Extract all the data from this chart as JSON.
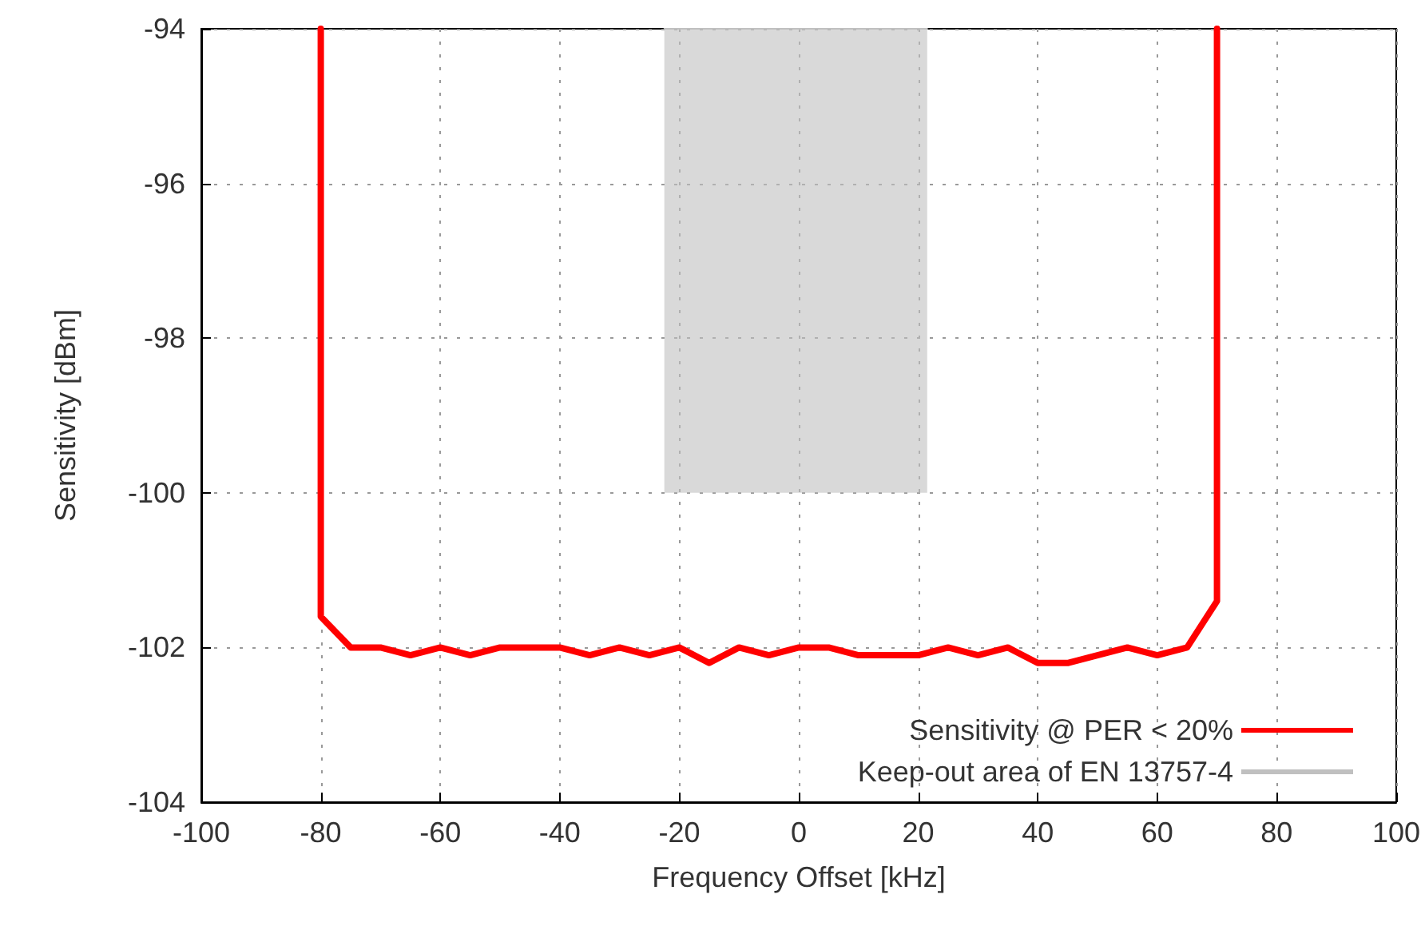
{
  "chart_data": {
    "type": "line",
    "xlabel": "Frequency Offset [kHz]",
    "ylabel": "Sensitivity [dBm]",
    "series": [
      {
        "name": "Sensitivity @ PER < 20%",
        "type": "line",
        "color": "#ff0000",
        "x": [
          -80,
          -80,
          -80,
          -75,
          -70,
          -65,
          -60,
          -55,
          -50,
          -40,
          -35,
          -30,
          -25,
          -20,
          -15,
          -10,
          -5,
          0,
          5,
          10,
          20,
          25,
          30,
          35,
          40,
          45,
          50,
          55,
          60,
          65,
          70,
          70,
          70
        ],
        "values": [
          -94,
          -97.8,
          -101.6,
          -102,
          -102,
          -102.1,
          -102,
          -102.1,
          -102,
          -102,
          -102.1,
          -102,
          -102.1,
          -102,
          -102.2,
          -102,
          -102.1,
          -102,
          -102,
          -102.1,
          -102.1,
          -102,
          -102.1,
          -102,
          -102.2,
          -102.2,
          -102.1,
          -102,
          -102.1,
          -102,
          -101.4,
          -97.7,
          -94
        ]
      },
      {
        "name": "Keep-out area of EN 13757-4",
        "type": "line",
        "color": "#c0c0c0",
        "x": [
          -22.5,
          21.5
        ],
        "values": [
          -94,
          -94
        ],
        "lower": [
          -100,
          -100
        ],
        "upper": [
          -94,
          -94
        ]
      }
    ],
    "xlim": [
      -100,
      100
    ],
    "xticks": [
      -100,
      -80,
      -60,
      -40,
      -20,
      0,
      20,
      40,
      60,
      80,
      100
    ],
    "ylim": [
      -104,
      -94
    ],
    "yticks": [
      -104,
      -102,
      -100,
      -98,
      -96,
      -94
    ],
    "grid": true,
    "legend": "bottom right",
    "marker": "none",
    "line_style": "solid"
  }
}
